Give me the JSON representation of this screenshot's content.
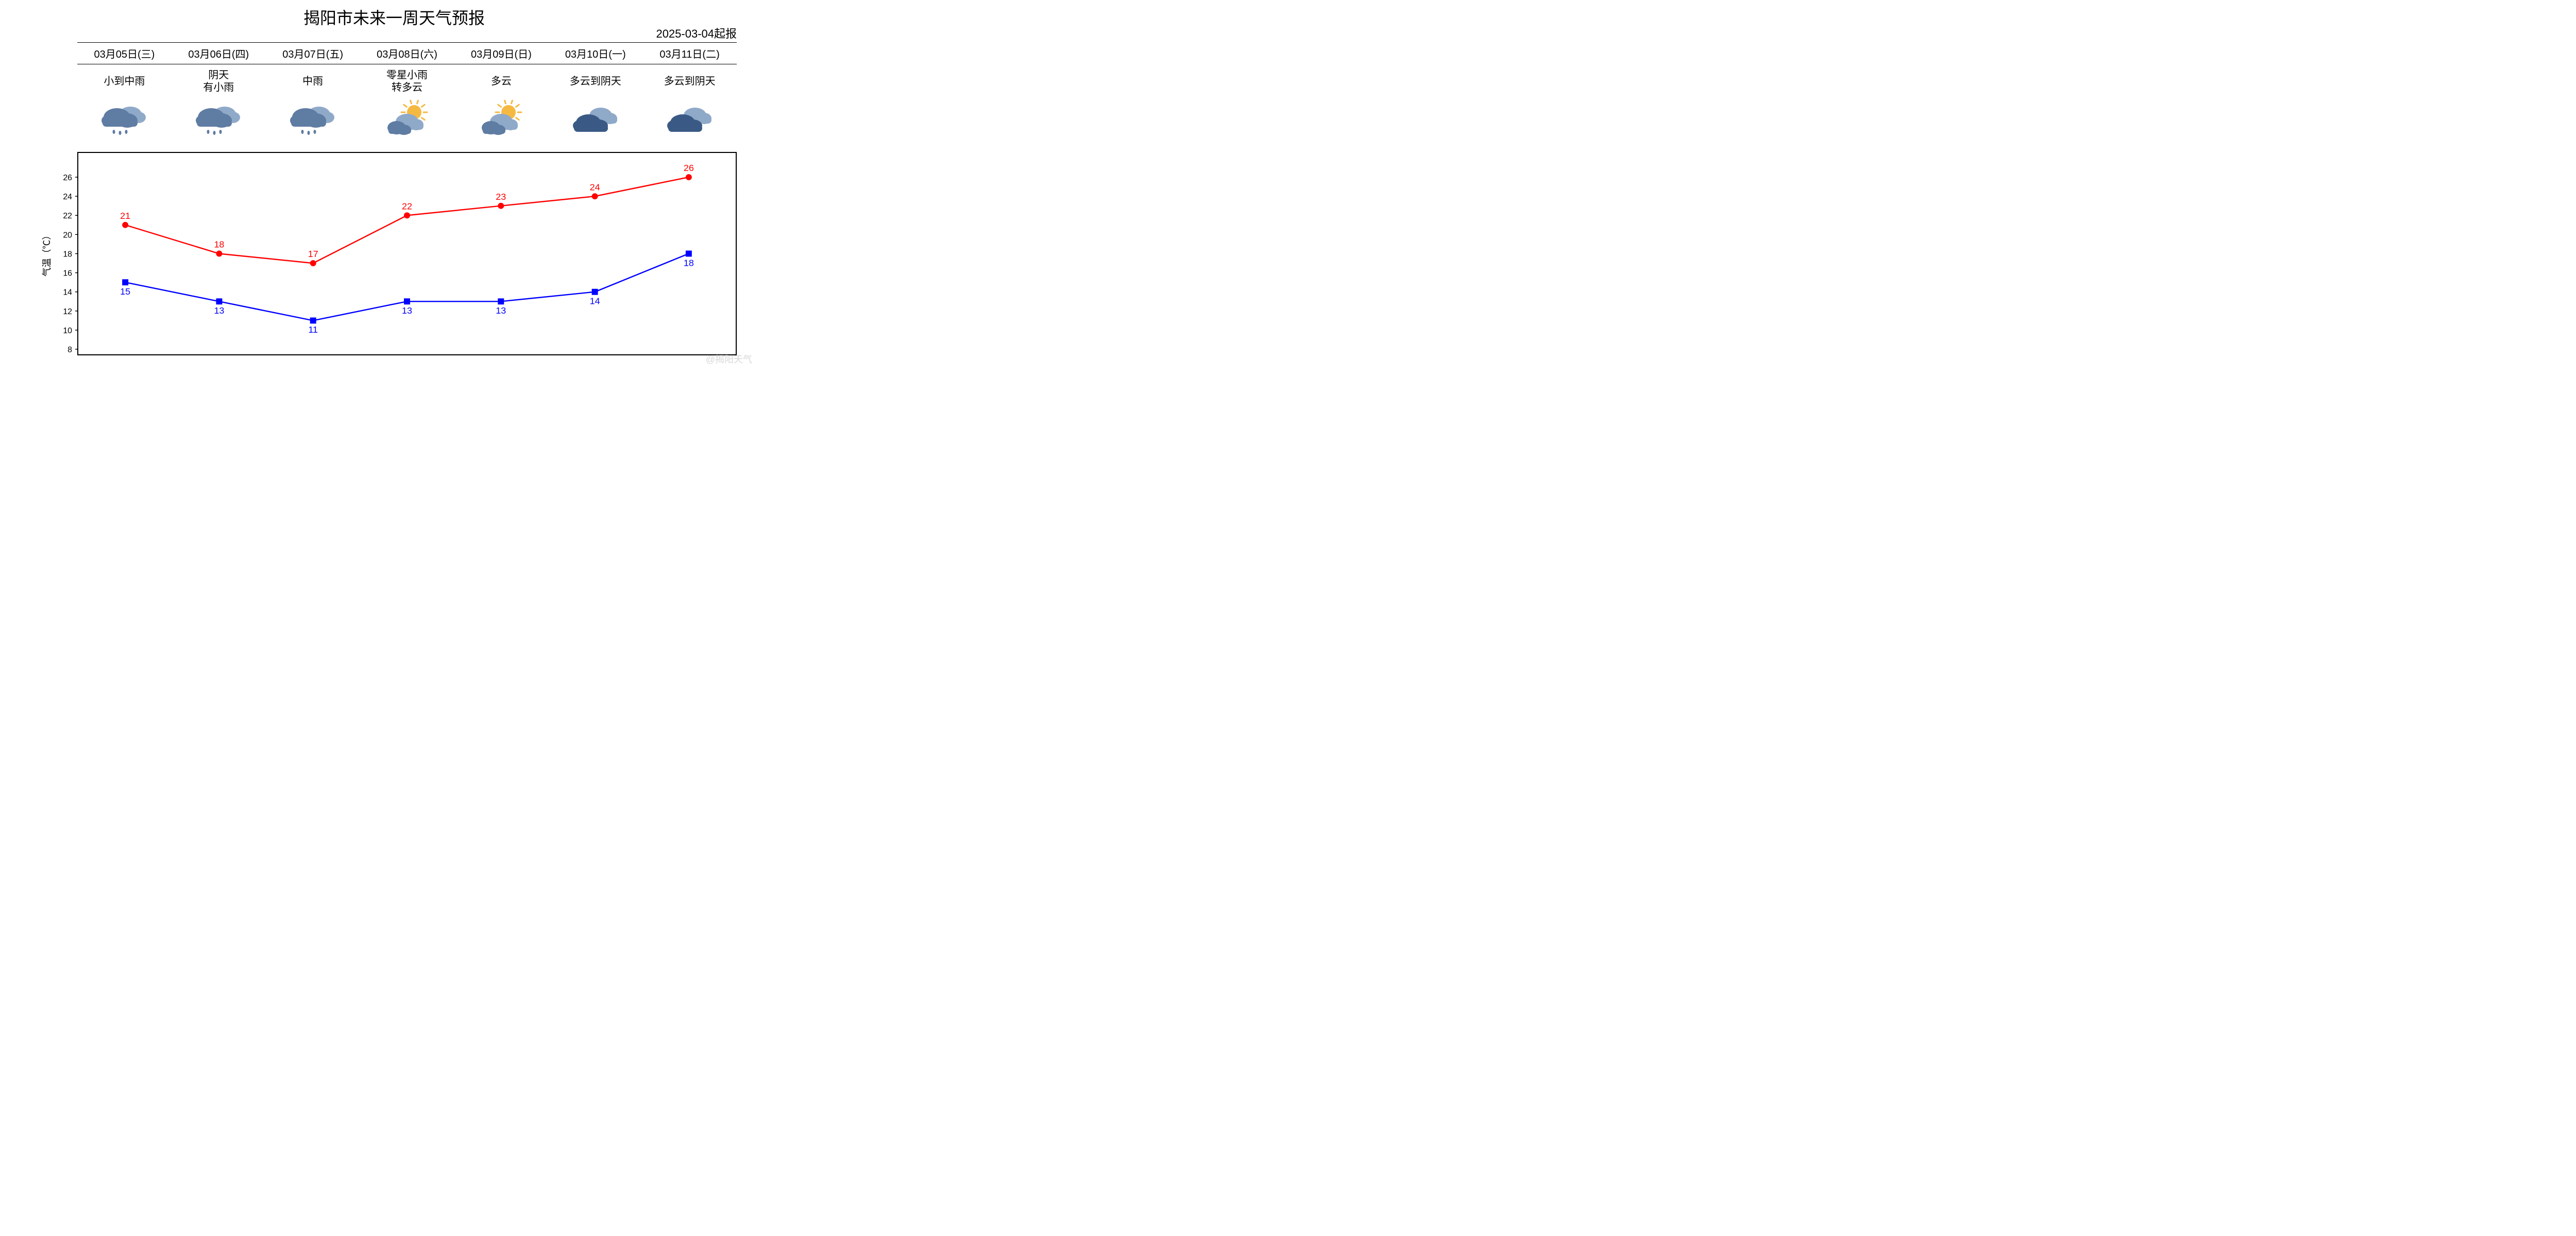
{
  "title": "揭阳市未来一周天气预报",
  "issue_date": "2025-03-04起报",
  "yaxis_label": "气温（℃）",
  "watermark": "@揭阳天气",
  "days": [
    {
      "date": "03月05日(三)",
      "condition": "小到中雨",
      "icon": "rain",
      "high": 21,
      "low": 15
    },
    {
      "date": "03月06日(四)",
      "condition": "阴天\n有小雨",
      "icon": "rain",
      "high": 18,
      "low": 13
    },
    {
      "date": "03月07日(五)",
      "condition": "中雨",
      "icon": "rain",
      "high": 17,
      "low": 11
    },
    {
      "date": "03月08日(六)",
      "condition": "零星小雨\n转多云",
      "icon": "partly",
      "high": 22,
      "low": 13
    },
    {
      "date": "03月09日(日)",
      "condition": "多云",
      "icon": "partly",
      "high": 23,
      "low": 13
    },
    {
      "date": "03月10日(一)",
      "condition": "多云到阴天",
      "icon": "cloudy",
      "high": 24,
      "low": 14
    },
    {
      "date": "03月11日(二)",
      "condition": "多云到阴天",
      "icon": "cloudy",
      "high": 26,
      "low": 18
    }
  ],
  "chart": {
    "type": "line",
    "ylim": [
      8,
      28
    ],
    "yticks": [
      8,
      10,
      12,
      14,
      16,
      18,
      20,
      22,
      24,
      26
    ],
    "high_series": {
      "color": "#ff0000",
      "marker": "circle",
      "marker_size": 6,
      "line_width": 2.5,
      "label_pos": "above"
    },
    "low_series": {
      "color": "#0000ff",
      "marker": "square",
      "marker_size": 6,
      "line_width": 2.5,
      "label_pos": "below"
    },
    "low_label_pos_override": {
      "0": "below",
      "6": "below"
    },
    "background_color": "#ffffff",
    "border_color": "#000000",
    "tick_fontsize": 16,
    "value_fontsize": 18,
    "axis_label_fontsize": 18
  },
  "icon_colors": {
    "cloud_back": "#8fa9c9",
    "cloud_front": "#5f7ca3",
    "cloud_dark": "#3a5a85",
    "sun": "#f5b942",
    "rain": "#5f7ca3"
  }
}
